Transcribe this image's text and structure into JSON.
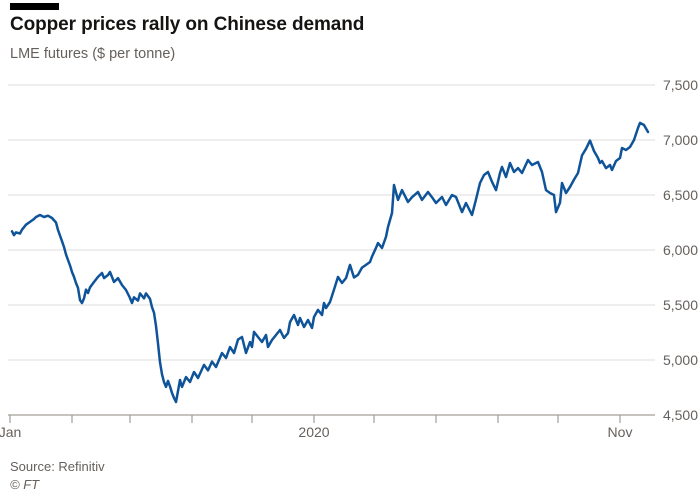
{
  "header": {
    "title": "Copper prices rally on Chinese demand",
    "subtitle": "LME futures ($ per tonne)"
  },
  "footer": {
    "source": "Source: Refinitiv",
    "copyright": "© FT"
  },
  "colors": {
    "line": "#0f5499",
    "grid": "#e1ddd8",
    "axis": "#a39d98",
    "tick": "#a39d98",
    "label_text": "#66605c",
    "title_text": "#161412",
    "accent_bar": "#000000",
    "background": "#ffffff"
  },
  "chart_data": {
    "type": "line",
    "title": "Copper prices rally on Chinese demand",
    "ylabel_unit": "LME futures ($ per tonne)",
    "x_unit": "trading day of 2020 (day index, Jan 1 = 0)",
    "xlim": [
      0,
      320
    ],
    "ylim": [
      4500,
      7500
    ],
    "grid": true,
    "legend": "none",
    "y_ticks": [
      {
        "value": 4500,
        "label": "4,500"
      },
      {
        "value": 5000,
        "label": "5,000"
      },
      {
        "value": 5500,
        "label": "5,500"
      },
      {
        "value": 6000,
        "label": "6,000"
      },
      {
        "value": 6500,
        "label": "6,500"
      },
      {
        "value": 7000,
        "label": "7,000"
      },
      {
        "value": 7500,
        "label": "7,500"
      }
    ],
    "x_ticks_days": [
      0,
      31,
      60,
      91,
      121,
      152,
      182,
      213,
      244,
      274,
      305
    ],
    "x_axis_labels": [
      {
        "day": 0,
        "label": "Jan"
      },
      {
        "day": 152,
        "label": "2020"
      },
      {
        "day": 305,
        "label": "Nov"
      }
    ],
    "series": [
      {
        "name": "LME futures ($ per tonne)",
        "points": [
          [
            1,
            6170
          ],
          [
            2,
            6135
          ],
          [
            3,
            6160
          ],
          [
            5,
            6150
          ],
          [
            6,
            6185
          ],
          [
            8,
            6230
          ],
          [
            10,
            6255
          ],
          [
            12,
            6282
          ],
          [
            13,
            6300
          ],
          [
            15,
            6318
          ],
          [
            17,
            6300
          ],
          [
            19,
            6312
          ],
          [
            21,
            6291
          ],
          [
            23,
            6250
          ],
          [
            24,
            6182
          ],
          [
            26,
            6080
          ],
          [
            27,
            6027
          ],
          [
            28,
            5960
          ],
          [
            29,
            5909
          ],
          [
            30,
            5860
          ],
          [
            31,
            5800
          ],
          [
            32,
            5755
          ],
          [
            33,
            5700
          ],
          [
            34,
            5655
          ],
          [
            35,
            5545
          ],
          [
            36,
            5518
          ],
          [
            37,
            5560
          ],
          [
            38,
            5640
          ],
          [
            39,
            5609
          ],
          [
            40,
            5660
          ],
          [
            42,
            5709
          ],
          [
            44,
            5755
          ],
          [
            46,
            5791
          ],
          [
            47,
            5745
          ],
          [
            49,
            5773
          ],
          [
            50,
            5800
          ],
          [
            52,
            5709
          ],
          [
            54,
            5745
          ],
          [
            56,
            5682
          ],
          [
            58,
            5636
          ],
          [
            59,
            5600
          ],
          [
            60,
            5564
          ],
          [
            61,
            5518
          ],
          [
            62,
            5570
          ],
          [
            64,
            5540
          ],
          [
            65,
            5605
          ],
          [
            67,
            5560
          ],
          [
            68,
            5605
          ],
          [
            70,
            5555
          ],
          [
            71,
            5480
          ],
          [
            72,
            5430
          ],
          [
            73,
            5310
          ],
          [
            74,
            5150
          ],
          [
            75,
            4980
          ],
          [
            76,
            4870
          ],
          [
            77,
            4800
          ],
          [
            78,
            4755
          ],
          [
            79,
            4810
          ],
          [
            80,
            4760
          ],
          [
            81,
            4700
          ],
          [
            82,
            4655
          ],
          [
            83,
            4618
          ],
          [
            85,
            4818
          ],
          [
            86,
            4755
          ],
          [
            88,
            4845
          ],
          [
            90,
            4800
          ],
          [
            92,
            4891
          ],
          [
            94,
            4836
          ],
          [
            97,
            4955
          ],
          [
            99,
            4905
          ],
          [
            101,
            4985
          ],
          [
            103,
            4936
          ],
          [
            106,
            5064
          ],
          [
            108,
            5018
          ],
          [
            110,
            5118
          ],
          [
            112,
            5064
          ],
          [
            114,
            5185
          ],
          [
            116,
            5209
          ],
          [
            118,
            5064
          ],
          [
            120,
            5164
          ],
          [
            121,
            5118
          ],
          [
            122,
            5255
          ],
          [
            124,
            5209
          ],
          [
            126,
            5164
          ],
          [
            128,
            5227
          ],
          [
            129,
            5118
          ],
          [
            131,
            5182
          ],
          [
            133,
            5227
          ],
          [
            135,
            5273
          ],
          [
            137,
            5200
          ],
          [
            139,
            5245
          ],
          [
            140,
            5345
          ],
          [
            142,
            5409
          ],
          [
            144,
            5318
          ],
          [
            145,
            5382
          ],
          [
            147,
            5300
          ],
          [
            149,
            5364
          ],
          [
            151,
            5291
          ],
          [
            152,
            5391
          ],
          [
            154,
            5455
          ],
          [
            156,
            5409
          ],
          [
            157,
            5518
          ],
          [
            158,
            5473
          ],
          [
            160,
            5527
          ],
          [
            162,
            5640
          ],
          [
            164,
            5755
          ],
          [
            166,
            5700
          ],
          [
            168,
            5745
          ],
          [
            170,
            5865
          ],
          [
            172,
            5750
          ],
          [
            174,
            5775
          ],
          [
            176,
            5840
          ],
          [
            178,
            5865
          ],
          [
            180,
            5891
          ],
          [
            181,
            5940
          ],
          [
            183,
            6020
          ],
          [
            184,
            6064
          ],
          [
            186,
            6018
          ],
          [
            188,
            6120
          ],
          [
            189,
            6209
          ],
          [
            191,
            6336
          ],
          [
            192,
            6591
          ],
          [
            194,
            6455
          ],
          [
            196,
            6545
          ],
          [
            199,
            6436
          ],
          [
            201,
            6480
          ],
          [
            204,
            6527
          ],
          [
            206,
            6455
          ],
          [
            209,
            6527
          ],
          [
            211,
            6480
          ],
          [
            213,
            6427
          ],
          [
            216,
            6482
          ],
          [
            218,
            6409
          ],
          [
            221,
            6500
          ],
          [
            223,
            6482
          ],
          [
            226,
            6345
          ],
          [
            228,
            6427
          ],
          [
            231,
            6318
          ],
          [
            233,
            6460
          ],
          [
            235,
            6609
          ],
          [
            237,
            6682
          ],
          [
            239,
            6709
          ],
          [
            241,
            6620
          ],
          [
            243,
            6545
          ],
          [
            245,
            6700
          ],
          [
            246,
            6755
          ],
          [
            248,
            6664
          ],
          [
            250,
            6791
          ],
          [
            252,
            6709
          ],
          [
            254,
            6745
          ],
          [
            256,
            6700
          ],
          [
            259,
            6818
          ],
          [
            261,
            6773
          ],
          [
            264,
            6800
          ],
          [
            266,
            6709
          ],
          [
            268,
            6545
          ],
          [
            270,
            6518
          ],
          [
            272,
            6500
          ],
          [
            273,
            6345
          ],
          [
            275,
            6430
          ],
          [
            276,
            6609
          ],
          [
            278,
            6518
          ],
          [
            280,
            6573
          ],
          [
            282,
            6640
          ],
          [
            284,
            6700
          ],
          [
            286,
            6860
          ],
          [
            288,
            6920
          ],
          [
            290,
            6995
          ],
          [
            292,
            6900
          ],
          [
            294,
            6836
          ],
          [
            295,
            6791
          ],
          [
            296,
            6809
          ],
          [
            298,
            6745
          ],
          [
            300,
            6773
          ],
          [
            301,
            6727
          ],
          [
            303,
            6809
          ],
          [
            305,
            6836
          ],
          [
            306,
            6927
          ],
          [
            308,
            6909
          ],
          [
            310,
            6936
          ],
          [
            312,
            7000
          ],
          [
            314,
            7109
          ],
          [
            315,
            7155
          ],
          [
            317,
            7136
          ],
          [
            319,
            7073
          ]
        ]
      }
    ]
  }
}
